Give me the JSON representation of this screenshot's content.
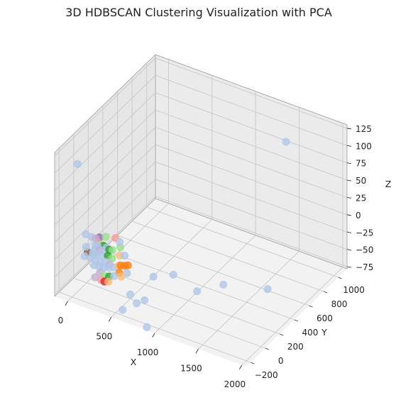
{
  "chart_data": {
    "type": "scatter",
    "projection": "3d",
    "title": "3D HDBSCAN Clustering Visualization with PCA",
    "xlabel": "X",
    "ylabel": "Y",
    "zlabel": "Z",
    "x_ticks": [
      "0",
      "500",
      "1000",
      "1500",
      "2000"
    ],
    "y_ticks": [
      "−200",
      "0",
      "200",
      "400",
      "600",
      "800",
      "1000"
    ],
    "z_ticks": [
      "−75",
      "−50",
      "−25",
      "0",
      "25",
      "50",
      "75",
      "100",
      "125"
    ],
    "xlim": [
      -150,
      2050
    ],
    "ylim": [
      -260,
      1120
    ],
    "zlim": [
      -78,
      130
    ],
    "grid": true,
    "legend": false,
    "colors": {
      "light_blue": "#aec7e8",
      "orange": "#ff7f0e",
      "light_orange": "#ffbb78",
      "green": "#2ca02c",
      "light_green": "#98df8a",
      "red": "#d62728",
      "pink": "#ff9896",
      "purple": "#9467bd",
      "lavender": "#c5b0d5",
      "brown": "#8c564b"
    },
    "points": [
      {
        "x": 20,
        "y": -150,
        "z": 110,
        "c": "light_blue"
      },
      {
        "x": 1450,
        "y": 1000,
        "z": 90,
        "c": "light_blue"
      },
      {
        "x": 420,
        "y": 50,
        "z": -50,
        "c": "light_blue"
      },
      {
        "x": 600,
        "y": -120,
        "z": -55,
        "c": "light_blue"
      },
      {
        "x": 700,
        "y": -150,
        "z": -60,
        "c": "light_blue"
      },
      {
        "x": 740,
        "y": -90,
        "z": -60,
        "c": "light_blue"
      },
      {
        "x": 640,
        "y": 150,
        "z": -55,
        "c": "light_blue"
      },
      {
        "x": 760,
        "y": 280,
        "z": -60,
        "c": "light_blue"
      },
      {
        "x": 1100,
        "y": 200,
        "z": -60,
        "c": "light_blue"
      },
      {
        "x": 1250,
        "y": 380,
        "z": -62,
        "c": "light_blue"
      },
      {
        "x": 1700,
        "y": 450,
        "z": -55,
        "c": "light_blue"
      },
      {
        "x": 580,
        "y": -200,
        "z": -70,
        "c": "light_blue"
      },
      {
        "x": 900,
        "y": -250,
        "z": -75,
        "c": "light_blue"
      },
      {
        "x": 120,
        "y": 30,
        "z": -10,
        "c": "purple"
      },
      {
        "x": 40,
        "y": -60,
        "z": 0,
        "c": "light_blue"
      },
      {
        "x": 80,
        "y": -30,
        "z": -5,
        "c": "light_blue"
      },
      {
        "x": 110,
        "y": -10,
        "z": -8,
        "c": "lavender"
      },
      {
        "x": 130,
        "y": 0,
        "z": -14,
        "c": "pink"
      },
      {
        "x": 150,
        "y": 20,
        "z": -18,
        "c": "light_green"
      },
      {
        "x": 170,
        "y": 30,
        "z": -20,
        "c": "green"
      },
      {
        "x": 90,
        "y": 10,
        "z": -20,
        "c": "light_blue"
      },
      {
        "x": 110,
        "y": 20,
        "z": -22,
        "c": "light_blue"
      },
      {
        "x": 60,
        "y": -60,
        "z": -25,
        "c": "brown"
      },
      {
        "x": 100,
        "y": -20,
        "z": -25,
        "c": "light_blue"
      },
      {
        "x": 140,
        "y": 10,
        "z": -25,
        "c": "lavender"
      },
      {
        "x": 160,
        "y": 40,
        "z": -28,
        "c": "light_blue"
      },
      {
        "x": 180,
        "y": 60,
        "z": -25,
        "c": "light_blue"
      },
      {
        "x": 200,
        "y": 70,
        "z": -28,
        "c": "green"
      },
      {
        "x": 220,
        "y": 90,
        "z": -30,
        "c": "light_green"
      },
      {
        "x": 80,
        "y": -10,
        "z": -30,
        "c": "light_blue"
      },
      {
        "x": 120,
        "y": 0,
        "z": -32,
        "c": "light_blue"
      },
      {
        "x": 160,
        "y": 30,
        "z": -35,
        "c": "light_blue"
      },
      {
        "x": 200,
        "y": 50,
        "z": -35,
        "c": "green"
      },
      {
        "x": 240,
        "y": 60,
        "z": -38,
        "c": "light_green"
      },
      {
        "x": 70,
        "y": -30,
        "z": -36,
        "c": "light_blue"
      },
      {
        "x": 110,
        "y": -10,
        "z": -40,
        "c": "light_blue"
      },
      {
        "x": 150,
        "y": 10,
        "z": -42,
        "c": "light_blue"
      },
      {
        "x": 190,
        "y": 30,
        "z": -42,
        "c": "light_blue"
      },
      {
        "x": 230,
        "y": 40,
        "z": -45,
        "c": "lavender"
      },
      {
        "x": 100,
        "y": -20,
        "z": -46,
        "c": "light_blue"
      },
      {
        "x": 140,
        "y": 0,
        "z": -48,
        "c": "light_blue"
      },
      {
        "x": 180,
        "y": 20,
        "z": -50,
        "c": "light_blue"
      },
      {
        "x": 220,
        "y": 40,
        "z": -50,
        "c": "light_blue"
      },
      {
        "x": 260,
        "y": 60,
        "z": -50,
        "c": "light_blue"
      },
      {
        "x": 300,
        "y": 80,
        "z": -48,
        "c": "light_orange"
      },
      {
        "x": 330,
        "y": 70,
        "z": -45,
        "c": "orange"
      },
      {
        "x": 360,
        "y": 90,
        "z": -46,
        "c": "orange"
      },
      {
        "x": 390,
        "y": 100,
        "z": -45,
        "c": "orange"
      },
      {
        "x": 340,
        "y": 40,
        "z": -52,
        "c": "orange"
      },
      {
        "x": 370,
        "y": 30,
        "z": -55,
        "c": "light_orange"
      },
      {
        "x": 160,
        "y": -10,
        "z": -55,
        "c": "lavender"
      },
      {
        "x": 200,
        "y": 0,
        "z": -58,
        "c": "light_green"
      },
      {
        "x": 240,
        "y": 20,
        "z": -60,
        "c": "green"
      },
      {
        "x": 190,
        "y": -30,
        "z": -62,
        "c": "pink"
      },
      {
        "x": 220,
        "y": -20,
        "z": -64,
        "c": "red"
      },
      {
        "x": 250,
        "y": 0,
        "z": -65,
        "c": "light_orange"
      },
      {
        "x": 130,
        "y": -40,
        "z": -60,
        "c": "lavender"
      },
      {
        "x": 280,
        "y": 120,
        "z": -38,
        "c": "light_orange"
      },
      {
        "x": 260,
        "y": 150,
        "z": -30,
        "c": "light_green"
      },
      {
        "x": 60,
        "y": -80,
        "z": -15,
        "c": "light_blue"
      },
      {
        "x": 50,
        "y": -90,
        "z": -28,
        "c": "light_blue"
      },
      {
        "x": 230,
        "y": 120,
        "z": -15,
        "c": "pink"
      },
      {
        "x": 170,
        "y": 60,
        "z": -10,
        "c": "light_green"
      },
      {
        "x": 270,
        "y": 130,
        "z": -20,
        "c": "light_blue"
      },
      {
        "x": 310,
        "y": 150,
        "z": -40,
        "c": "light_blue"
      },
      {
        "x": 290,
        "y": 30,
        "z": -58,
        "c": "light_blue"
      }
    ]
  }
}
